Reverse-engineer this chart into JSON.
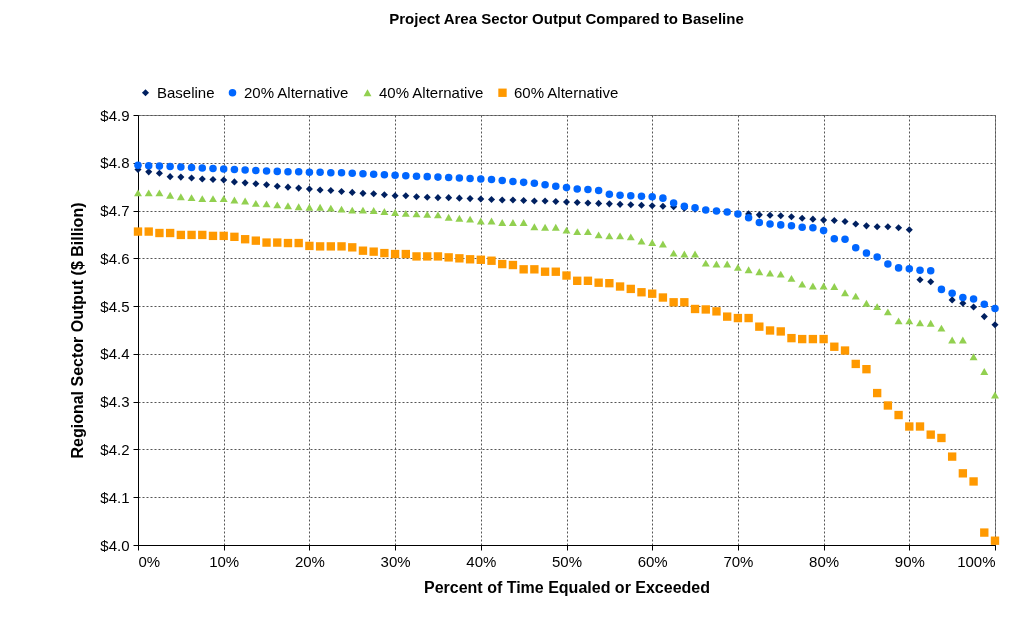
{
  "chart_data": {
    "type": "scatter",
    "title": "Project Area Sector Output Compared to Baseline",
    "xlabel": "Percent of Time Equaled or Exceeded",
    "ylabel": "Regional Sector Output ($ Billion)",
    "x": [
      0,
      1.25,
      2.5,
      3.75,
      5,
      6.25,
      7.5,
      8.75,
      10,
      11.25,
      12.5,
      13.75,
      15,
      16.25,
      17.5,
      18.75,
      20,
      21.25,
      22.5,
      23.75,
      25,
      26.25,
      27.5,
      28.75,
      30,
      31.25,
      32.5,
      33.75,
      35,
      36.25,
      37.5,
      38.75,
      40,
      41.25,
      42.5,
      43.75,
      45,
      46.25,
      47.5,
      48.75,
      50,
      51.25,
      52.5,
      53.75,
      55,
      56.25,
      57.5,
      58.75,
      60,
      61.25,
      62.5,
      63.75,
      65,
      66.25,
      67.5,
      68.75,
      70,
      71.25,
      72.5,
      73.75,
      75,
      76.25,
      77.5,
      78.75,
      80,
      81.25,
      82.5,
      83.75,
      85,
      86.25,
      87.5,
      88.75,
      90,
      91.25,
      92.5,
      93.75,
      95,
      96.25,
      97.5,
      98.75,
      100
    ],
    "series": [
      {
        "name": "Baseline",
        "color": "#002060",
        "marker": "diamond",
        "values": [
          4.786,
          4.781,
          4.778,
          4.771,
          4.77,
          4.768,
          4.766,
          4.765,
          4.764,
          4.76,
          4.758,
          4.756,
          4.754,
          4.751,
          4.749,
          4.747,
          4.745,
          4.743,
          4.742,
          4.74,
          4.738,
          4.736,
          4.735,
          4.733,
          4.731,
          4.731,
          4.729,
          4.728,
          4.727,
          4.727,
          4.726,
          4.725,
          4.724,
          4.723,
          4.722,
          4.722,
          4.721,
          4.72,
          4.72,
          4.719,
          4.718,
          4.717,
          4.716,
          4.715,
          4.714,
          4.713,
          4.712,
          4.711,
          4.71,
          4.709,
          4.708,
          4.705,
          4.703,
          null,
          null,
          null,
          null,
          4.693,
          4.691,
          4.69,
          4.689,
          4.687,
          4.684,
          4.682,
          4.68,
          4.679,
          4.677,
          4.672,
          4.668,
          4.666,
          4.666,
          4.664,
          4.66,
          4.555,
          4.551,
          null,
          4.513,
          4.506,
          4.498,
          4.478,
          4.461
        ]
      },
      {
        "name": "20% Alternative",
        "color": "#0066ff",
        "marker": "circle",
        "values": [
          4.795,
          4.794,
          4.793,
          4.792,
          4.791,
          4.79,
          4.789,
          4.788,
          4.787,
          4.786,
          4.785,
          4.784,
          4.783,
          4.782,
          4.781,
          4.781,
          4.78,
          4.78,
          4.779,
          4.779,
          4.778,
          4.777,
          4.776,
          4.775,
          4.774,
          4.773,
          4.772,
          4.771,
          4.77,
          4.769,
          4.768,
          4.767,
          4.766,
          4.765,
          4.763,
          4.761,
          4.759,
          4.757,
          4.754,
          4.751,
          4.748,
          4.745,
          4.744,
          4.742,
          4.734,
          4.732,
          4.731,
          4.73,
          4.729,
          4.726,
          4.716,
          4.709,
          4.706,
          4.701,
          4.699,
          4.697,
          4.693,
          4.685,
          4.675,
          4.672,
          4.67,
          4.668,
          4.665,
          4.664,
          4.658,
          4.641,
          4.64,
          4.622,
          4.611,
          4.603,
          4.588,
          4.58,
          4.578,
          4.575,
          4.574,
          4.535,
          4.527,
          4.518,
          4.515,
          4.504,
          4.495
        ]
      },
      {
        "name": "40% Alternative",
        "color": "#92d050",
        "marker": "triangle",
        "values": [
          4.737,
          4.737,
          4.737,
          4.732,
          4.729,
          4.727,
          4.725,
          4.725,
          4.725,
          4.722,
          4.72,
          4.715,
          4.714,
          4.712,
          4.71,
          4.708,
          4.707,
          4.707,
          4.705,
          4.703,
          4.701,
          4.701,
          4.7,
          4.698,
          4.696,
          4.694,
          4.693,
          4.692,
          4.691,
          4.686,
          4.684,
          4.682,
          4.678,
          4.678,
          4.675,
          4.675,
          4.675,
          4.666,
          4.665,
          4.665,
          4.659,
          4.656,
          4.656,
          4.649,
          4.647,
          4.647,
          4.645,
          4.636,
          4.633,
          4.63,
          4.611,
          4.609,
          4.609,
          4.59,
          4.588,
          4.588,
          4.581,
          4.576,
          4.572,
          4.569,
          4.567,
          4.558,
          4.546,
          4.542,
          4.542,
          4.541,
          4.528,
          4.521,
          4.506,
          4.499,
          4.488,
          4.469,
          4.469,
          4.465,
          4.464,
          4.454,
          4.429,
          4.429,
          4.394,
          4.363,
          4.314
        ]
      },
      {
        "name": "60% Alternative",
        "color": "#ff9900",
        "marker": "square",
        "values": [
          4.656,
          4.656,
          4.653,
          4.653,
          4.649,
          4.649,
          4.649,
          4.647,
          4.647,
          4.645,
          4.64,
          4.637,
          4.633,
          4.633,
          4.632,
          4.632,
          4.626,
          4.625,
          4.625,
          4.625,
          4.623,
          4.616,
          4.614,
          4.611,
          4.609,
          4.609,
          4.604,
          4.604,
          4.604,
          4.602,
          4.6,
          4.598,
          4.597,
          4.595,
          4.588,
          4.586,
          4.577,
          4.577,
          4.572,
          4.572,
          4.564,
          4.553,
          4.553,
          4.549,
          4.548,
          4.541,
          4.536,
          4.529,
          4.526,
          4.518,
          4.508,
          4.508,
          4.494,
          4.493,
          4.489,
          4.478,
          4.475,
          4.475,
          4.457,
          4.449,
          4.447,
          4.433,
          4.431,
          4.431,
          4.431,
          4.415,
          4.407,
          4.379,
          4.368,
          4.318,
          4.292,
          4.272,
          4.248,
          4.248,
          4.231,
          4.224,
          4.185,
          4.15,
          4.133,
          4.026,
          4.009
        ]
      }
    ],
    "xlim": [
      0,
      100
    ],
    "xticks": [
      {
        "value": 0,
        "label": "0%"
      },
      {
        "value": 10,
        "label": "10%"
      },
      {
        "value": 20,
        "label": "20%"
      },
      {
        "value": 30,
        "label": "30%"
      },
      {
        "value": 40,
        "label": "40%"
      },
      {
        "value": 50,
        "label": "50%"
      },
      {
        "value": 60,
        "label": "60%"
      },
      {
        "value": 70,
        "label": "70%"
      },
      {
        "value": 80,
        "label": "80%"
      },
      {
        "value": 90,
        "label": "90%"
      },
      {
        "value": 100,
        "label": "100%"
      }
    ],
    "ylim": [
      4.0,
      4.9
    ],
    "yticks": [
      {
        "value": 4.0,
        "label": "$4.0"
      },
      {
        "value": 4.1,
        "label": "$4.1"
      },
      {
        "value": 4.2,
        "label": "$4.2"
      },
      {
        "value": 4.3,
        "label": "$4.3"
      },
      {
        "value": 4.4,
        "label": "$4.4"
      },
      {
        "value": 4.5,
        "label": "$4.5"
      },
      {
        "value": 4.6,
        "label": "$4.6"
      },
      {
        "value": 4.7,
        "label": "$4.7"
      },
      {
        "value": 4.8,
        "label": "$4.8"
      },
      {
        "value": 4.9,
        "label": "$4.9"
      }
    ],
    "grid": true,
    "legend": "top"
  }
}
